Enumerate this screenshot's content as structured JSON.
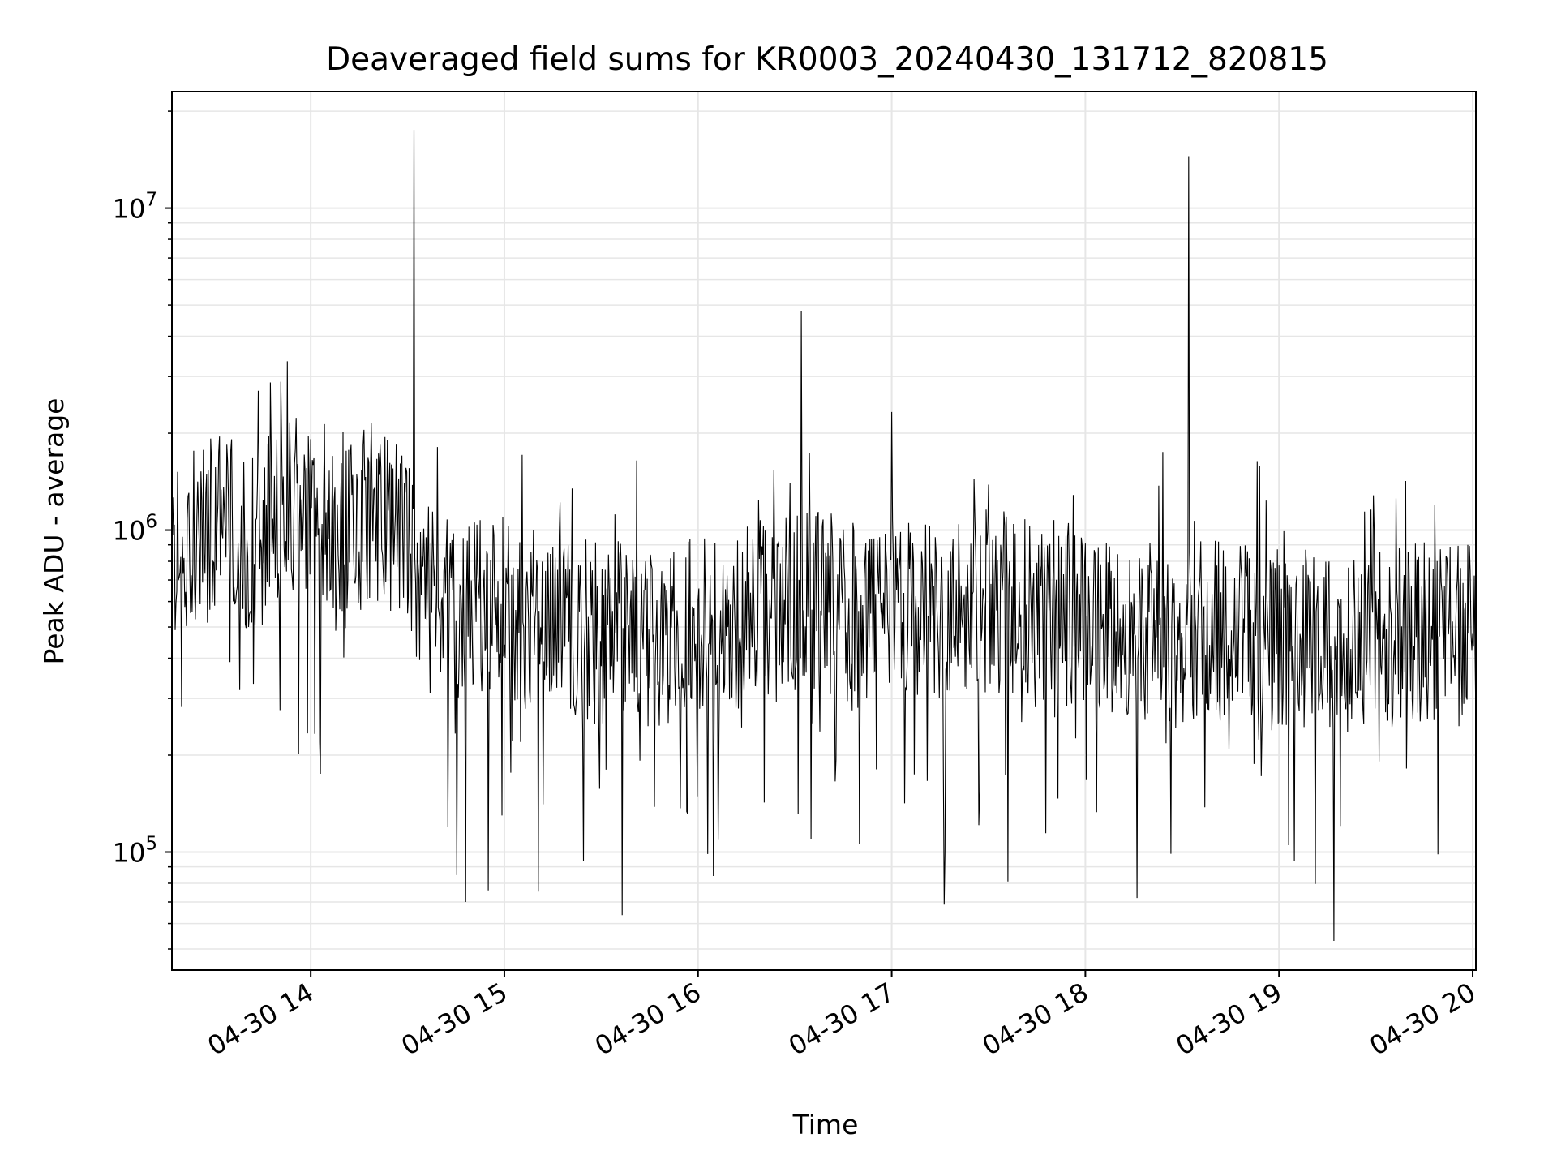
{
  "chart_data": {
    "type": "line",
    "title": "Deaveraged field sums for KR0003_20240430_131712_820815",
    "xlabel": "Time",
    "ylabel": "Peak ADU - average",
    "yscale": "log",
    "grid": true,
    "legend": "none",
    "colors": {
      "line": "#000000",
      "grid": "#e6e6e6",
      "axes": "#000000",
      "background": "#ffffff"
    },
    "xlim": [
      "2024-04-30 13:17",
      "2024-04-30 20:01"
    ],
    "ylim": [
      43000,
      23000000
    ],
    "x_ticks": [
      {
        "value": "2024-04-30 14:00",
        "label": "04-30 14"
      },
      {
        "value": "2024-04-30 15:00",
        "label": "04-30 15"
      },
      {
        "value": "2024-04-30 16:00",
        "label": "04-30 16"
      },
      {
        "value": "2024-04-30 17:00",
        "label": "04-30 17"
      },
      {
        "value": "2024-04-30 18:00",
        "label": "04-30 18"
      },
      {
        "value": "2024-04-30 19:00",
        "label": "04-30 19"
      },
      {
        "value": "2024-04-30 20:00",
        "label": "04-30 20"
      }
    ],
    "y_ticks": [
      {
        "value": 100000,
        "base": "10",
        "exp": "5"
      },
      {
        "value": 1000000,
        "base": "10",
        "exp": "6"
      },
      {
        "value": 10000000,
        "base": "10",
        "exp": "7"
      }
    ],
    "series": [
      {
        "x": [
          "2024-04-30 13:17",
          "2024-04-30 13:25",
          "2024-04-30 13:33",
          "2024-04-30 13:41",
          "2024-04-30 13:49",
          "2024-04-30 13:57",
          "2024-04-30 14:05",
          "2024-04-30 14:13",
          "2024-04-30 14:21",
          "2024-04-30 14:29",
          "2024-04-30 14:37",
          "2024-04-30 14:45",
          "2024-04-30 14:53",
          "2024-04-30 15:01",
          "2024-04-30 15:09",
          "2024-04-30 15:17",
          "2024-04-30 15:25",
          "2024-04-30 15:33",
          "2024-04-30 15:41",
          "2024-04-30 15:49",
          "2024-04-30 15:57",
          "2024-04-30 16:05",
          "2024-04-30 16:13",
          "2024-04-30 16:21",
          "2024-04-30 16:29",
          "2024-04-30 16:37",
          "2024-04-30 16:45",
          "2024-04-30 16:53",
          "2024-04-30 17:01",
          "2024-04-30 17:09",
          "2024-04-30 17:17",
          "2024-04-30 17:25",
          "2024-04-30 17:33",
          "2024-04-30 17:41",
          "2024-04-30 17:49",
          "2024-04-30 17:57",
          "2024-04-30 18:05",
          "2024-04-30 18:13",
          "2024-04-30 18:21",
          "2024-04-30 18:29",
          "2024-04-30 18:37",
          "2024-04-30 18:45",
          "2024-04-30 18:53",
          "2024-04-30 19:01",
          "2024-04-30 19:09",
          "2024-04-30 19:17",
          "2024-04-30 19:25",
          "2024-04-30 19:33",
          "2024-04-30 19:41",
          "2024-04-30 19:49",
          "2024-04-30 19:57"
        ],
        "y": [
          1000000,
          950000,
          1100000,
          900000,
          1050000,
          1200000,
          1100000,
          1050000,
          1150000,
          1000000,
          600000,
          550000,
          600000,
          580000,
          520000,
          500000,
          480000,
          470000,
          460000,
          480000,
          500000,
          480000,
          530000,
          560000,
          600000,
          620000,
          560000,
          520000,
          600000,
          580000,
          560000,
          620000,
          600000,
          580000,
          560000,
          540000,
          500000,
          480000,
          470000,
          460000,
          520000,
          480000,
          470000,
          450000,
          460000,
          470000,
          480000,
          450000,
          500000,
          460000,
          480000
        ],
        "spikes": [
          {
            "x": "2024-04-30 14:32",
            "y": 17500000
          },
          {
            "x": "2024-04-30 16:32",
            "y": 4800000
          },
          {
            "x": "2024-04-30 18:32",
            "y": 14500000
          }
        ],
        "dips": [
          {
            "x": "2024-04-30 14:48",
            "y": 70000
          },
          {
            "x": "2024-04-30 14:55",
            "y": 76000
          },
          {
            "x": "2024-04-30 17:36",
            "y": 81000
          },
          {
            "x": "2024-04-30 18:16",
            "y": 72000
          },
          {
            "x": "2024-04-30 19:17",
            "y": 53000
          }
        ]
      }
    ]
  }
}
